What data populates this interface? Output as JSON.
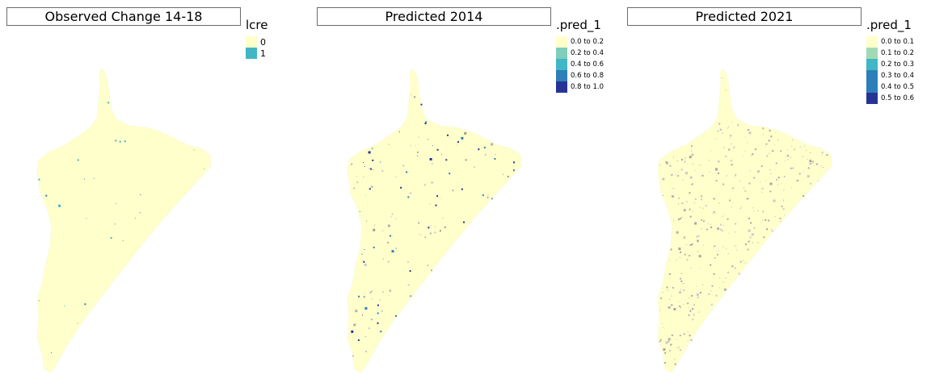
{
  "panels": [
    {
      "title": "Observed Change 14-18",
      "legend": {
        "title": "lcre",
        "items": [
          {
            "label": "0",
            "color": "#ffffcc"
          },
          {
            "label": "1",
            "color": "#41b6c4"
          }
        ]
      }
    },
    {
      "title": "Predicted 2014",
      "legend": {
        "title": ".pred_1",
        "items": [
          {
            "label": "0.0 to 0.2",
            "color": "#ffffcc"
          },
          {
            "label": "0.2 to 0.4",
            "color": "#7fcdbb"
          },
          {
            "label": "0.4 to 0.6",
            "color": "#41b6c4"
          },
          {
            "label": "0.6 to 0.8",
            "color": "#2c7fb8"
          },
          {
            "label": "0.8 to 1.0",
            "color": "#253494"
          }
        ]
      }
    },
    {
      "title": "Predicted 2021",
      "legend": {
        "title": ".pred_1",
        "items": [
          {
            "label": "0.0 to 0.1",
            "color": "#ffffcc"
          },
          {
            "label": "0.1 to 0.2",
            "color": "#a1dab4"
          },
          {
            "label": "0.2 to 0.3",
            "color": "#41b6c4"
          },
          {
            "label": "0.3 to 0.4",
            "color": "#2c7fb8"
          },
          {
            "label": "0.4 to 0.5",
            "color": "#2c7fb8"
          },
          {
            "label": "0.5 to 0.6",
            "color": "#253494"
          }
        ]
      }
    }
  ]
}
